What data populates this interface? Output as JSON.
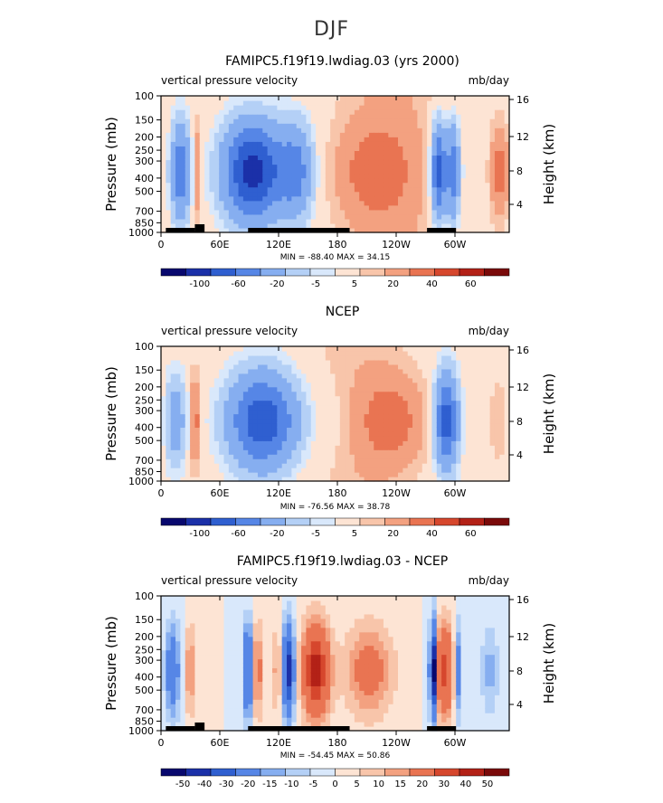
{
  "page": {
    "title": "DJF"
  },
  "palette": {
    "colors8": [
      "#08086e",
      "#1b30a8",
      "#2f5fd0",
      "#5686e6",
      "#86aef0",
      "#b4d0f6",
      "#d9e8fb",
      "#fde4d4",
      "#f8c5aa",
      "#f3a180",
      "#e97452",
      "#d6472d",
      "#b32117",
      "#7a0a0a"
    ]
  },
  "panels": [
    {
      "id": "model",
      "title": "FAMIPC5.f19f19.lwdiag.03 (yrs 2000)",
      "left_label": "vertical pressure velocity",
      "right_label": "mb/day",
      "stats": "MIN = -88.40   MAX =  34.15",
      "has_topo": true,
      "colorbar": {
        "labels": [
          "-100",
          "-60",
          "-20",
          "-5",
          "5",
          "20",
          "40",
          "60"
        ]
      }
    },
    {
      "id": "ncep",
      "title": "NCEP",
      "left_label": "vertical pressure velocity",
      "right_label": "mb/day",
      "stats": "MIN = -76.56   MAX =  38.78",
      "has_topo": false,
      "colorbar": {
        "labels": [
          "-100",
          "-60",
          "-20",
          "-5",
          "5",
          "20",
          "40",
          "60"
        ]
      }
    },
    {
      "id": "diff",
      "title": "FAMIPC5.f19f19.lwdiag.03 - NCEP",
      "left_label": "vertical pressure velocity",
      "right_label": "mb/day",
      "stats": "MIN = -54.45   MAX =  50.86",
      "has_topo": true,
      "colorbar": {
        "labels": [
          "-50",
          "-40",
          "-30",
          "-20",
          "-15",
          "-10",
          "-5",
          "0",
          "5",
          "10",
          "15",
          "20",
          "30",
          "40",
          "50"
        ]
      }
    }
  ],
  "chart_data": {
    "type": "heatmap",
    "x_ticks": [
      "0",
      "60E",
      "120E",
      "180",
      "120W",
      "60W"
    ],
    "xlim": [
      0,
      360
    ],
    "left_axis": {
      "label": "Pressure (mb)",
      "ticks": [
        "100",
        "150",
        "200",
        "250",
        "300",
        "400",
        "500",
        "700",
        "850",
        "1000"
      ],
      "ylim": [
        1000,
        100
      ],
      "log": true
    },
    "right_axis": {
      "label": "Height (km)",
      "ticks": [
        "16",
        "12",
        "8",
        "4"
      ]
    },
    "units": "mb/day"
  }
}
